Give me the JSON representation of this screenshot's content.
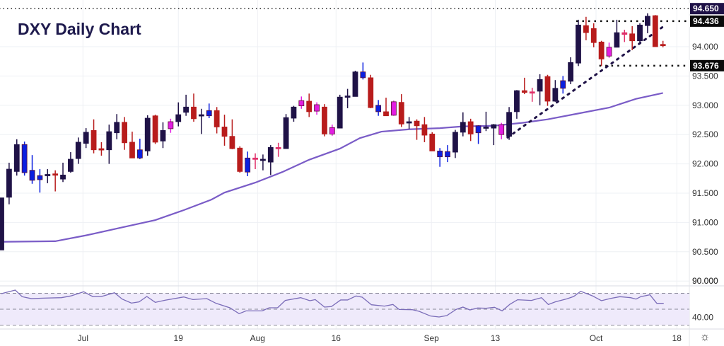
{
  "chart_data": {
    "type": "candlestick",
    "title": "DXY Daily Chart",
    "ylim": [
      89.85,
      94.8
    ],
    "price_ticks": [
      "90.000",
      "90.500",
      "91.000",
      "91.500",
      "92.000",
      "92.500",
      "93.000",
      "93.500",
      "94.000"
    ],
    "rsi_ticks": [
      {
        "value": 90,
        "label": "90.000",
        "panel": "price"
      },
      {
        "value": 40,
        "label": "40.00",
        "panel": "rsi"
      }
    ],
    "x_ticks": [
      {
        "i": 10.6,
        "label": "Jul"
      },
      {
        "i": 23.0,
        "label": "19"
      },
      {
        "i": 33.3,
        "label": "Aug"
      },
      {
        "i": 43.5,
        "label": "16"
      },
      {
        "i": 55.9,
        "label": "Sep"
      },
      {
        "i": 64.2,
        "label": "13"
      },
      {
        "i": 77.3,
        "label": "Oct"
      },
      {
        "i": 87.8,
        "label": "18"
      }
    ],
    "colors": {
      "d": "#1f1247",
      "r": "#b81c1c",
      "b": "#0b1fe0",
      "m": "#e21ee2",
      "p": "#e0306a",
      "ma": "#7a5cc7",
      "rsi": "#7a6cb8",
      "rsi_bg": "#efeafb"
    },
    "candle_fields": [
      "open",
      "high",
      "low",
      "close",
      "color"
    ],
    "candles": [
      [
        90.53,
        91.42,
        90.53,
        91.42,
        "d"
      ],
      [
        91.43,
        92.02,
        91.31,
        91.91,
        "d"
      ],
      [
        91.87,
        92.42,
        91.8,
        92.33,
        "d"
      ],
      [
        92.33,
        92.38,
        91.8,
        91.85,
        "b"
      ],
      [
        91.89,
        92.15,
        91.66,
        91.72,
        "b"
      ],
      [
        91.8,
        91.91,
        91.51,
        91.73,
        "b"
      ],
      [
        91.81,
        91.91,
        91.67,
        91.82,
        "d"
      ],
      [
        91.83,
        91.89,
        91.53,
        91.82,
        "r"
      ],
      [
        91.74,
        92.02,
        91.69,
        91.81,
        "d"
      ],
      [
        91.87,
        92.2,
        91.85,
        92.08,
        "d"
      ],
      [
        92.09,
        92.45,
        92.0,
        92.37,
        "d"
      ],
      [
        92.35,
        92.61,
        92.27,
        92.54,
        "d"
      ],
      [
        92.57,
        92.76,
        92.18,
        92.24,
        "r"
      ],
      [
        92.26,
        92.37,
        92.14,
        92.25,
        "r"
      ],
      [
        92.24,
        92.67,
        92.0,
        92.55,
        "d"
      ],
      [
        92.53,
        92.85,
        92.42,
        92.71,
        "d"
      ],
      [
        92.71,
        92.8,
        92.24,
        92.36,
        "r"
      ],
      [
        92.37,
        92.55,
        92.1,
        92.1,
        "r"
      ],
      [
        92.1,
        92.43,
        92.08,
        92.24,
        "b"
      ],
      [
        92.22,
        92.83,
        92.14,
        92.78,
        "d"
      ],
      [
        92.82,
        92.84,
        92.34,
        92.37,
        "r"
      ],
      [
        92.39,
        92.71,
        92.27,
        92.57,
        "d"
      ],
      [
        92.6,
        92.77,
        92.53,
        92.72,
        "m"
      ],
      [
        92.72,
        93.05,
        92.64,
        92.84,
        "d"
      ],
      [
        92.88,
        93.18,
        92.82,
        92.97,
        "d"
      ],
      [
        92.97,
        93.2,
        92.72,
        92.77,
        "r"
      ],
      [
        92.82,
        92.94,
        92.51,
        92.84,
        "d"
      ],
      [
        92.82,
        93.03,
        92.78,
        92.91,
        "b"
      ],
      [
        92.91,
        92.97,
        92.52,
        92.63,
        "r"
      ],
      [
        92.63,
        92.84,
        92.31,
        92.47,
        "r"
      ],
      [
        92.47,
        92.76,
        92.25,
        92.26,
        "r"
      ],
      [
        92.27,
        92.3,
        91.85,
        91.87,
        "r"
      ],
      [
        91.86,
        92.21,
        91.79,
        92.1,
        "b"
      ],
      [
        92.1,
        92.18,
        91.91,
        92.08,
        "p"
      ],
      [
        92.06,
        92.16,
        91.89,
        92.08,
        "d"
      ],
      [
        92.03,
        92.32,
        91.81,
        92.28,
        "d"
      ],
      [
        92.28,
        92.36,
        92.12,
        92.26,
        "p"
      ],
      [
        92.26,
        92.85,
        92.26,
        92.79,
        "d"
      ],
      [
        92.78,
        92.99,
        92.72,
        92.97,
        "d"
      ],
      [
        92.99,
        93.15,
        92.94,
        93.08,
        "m"
      ],
      [
        93.07,
        93.2,
        92.8,
        92.89,
        "r"
      ],
      [
        92.9,
        93.05,
        92.84,
        93.01,
        "m"
      ],
      [
        92.97,
        93.02,
        92.47,
        92.51,
        "r"
      ],
      [
        92.51,
        92.67,
        92.48,
        92.62,
        "m"
      ],
      [
        92.61,
        93.18,
        92.61,
        93.14,
        "d"
      ],
      [
        93.14,
        93.28,
        92.95,
        93.16,
        "d"
      ],
      [
        93.15,
        93.59,
        93.15,
        93.57,
        "d"
      ],
      [
        93.47,
        93.73,
        93.44,
        93.57,
        "b"
      ],
      [
        93.47,
        93.52,
        92.95,
        92.96,
        "r"
      ],
      [
        92.89,
        93.09,
        92.82,
        93.0,
        "b"
      ],
      [
        92.89,
        93.13,
        92.82,
        92.82,
        "r"
      ],
      [
        92.83,
        93.08,
        92.82,
        93.06,
        "m"
      ],
      [
        93.05,
        93.19,
        92.63,
        92.68,
        "r"
      ],
      [
        92.7,
        92.8,
        92.6,
        92.72,
        "d"
      ],
      [
        92.73,
        92.76,
        92.41,
        92.65,
        "r"
      ],
      [
        92.67,
        92.8,
        92.37,
        92.49,
        "r"
      ],
      [
        92.51,
        92.54,
        92.22,
        92.22,
        "r"
      ],
      [
        92.22,
        92.27,
        91.95,
        92.12,
        "b"
      ],
      [
        92.12,
        92.32,
        92.03,
        92.21,
        "b"
      ],
      [
        92.2,
        92.58,
        92.1,
        92.54,
        "d"
      ],
      [
        92.54,
        92.88,
        92.47,
        92.71,
        "d"
      ],
      [
        92.72,
        92.77,
        92.39,
        92.51,
        "r"
      ],
      [
        92.53,
        92.66,
        92.34,
        92.65,
        "b"
      ],
      [
        92.61,
        92.89,
        92.56,
        92.63,
        "d"
      ],
      [
        92.61,
        92.68,
        92.32,
        92.67,
        "d"
      ],
      [
        92.5,
        92.7,
        92.42,
        92.67,
        "m"
      ],
      [
        92.47,
        92.97,
        92.41,
        92.88,
        "d"
      ],
      [
        92.89,
        93.26,
        92.77,
        93.25,
        "d"
      ],
      [
        93.25,
        93.47,
        93.19,
        93.22,
        "r"
      ],
      [
        93.23,
        93.3,
        93.06,
        93.22,
        "p"
      ],
      [
        93.24,
        93.53,
        93.0,
        93.44,
        "d"
      ],
      [
        93.49,
        93.52,
        92.99,
        93.07,
        "r"
      ],
      [
        93.07,
        93.43,
        93.06,
        93.29,
        "d"
      ],
      [
        93.29,
        93.5,
        93.2,
        93.42,
        "b"
      ],
      [
        93.41,
        93.82,
        93.36,
        93.73,
        "d"
      ],
      [
        93.72,
        94.46,
        93.67,
        94.37,
        "d"
      ],
      [
        94.36,
        94.51,
        94.11,
        94.24,
        "r"
      ],
      [
        94.31,
        94.4,
        93.99,
        94.07,
        "r"
      ],
      [
        94.08,
        94.1,
        93.67,
        93.79,
        "r"
      ],
      [
        93.84,
        94.07,
        93.81,
        93.99,
        "m"
      ],
      [
        93.99,
        94.46,
        93.99,
        94.24,
        "d"
      ],
      [
        94.24,
        94.29,
        94.08,
        94.21,
        "p"
      ],
      [
        94.22,
        94.35,
        93.94,
        94.1,
        "r"
      ],
      [
        94.1,
        94.4,
        94.04,
        94.37,
        "d"
      ],
      [
        94.36,
        94.57,
        94.23,
        94.52,
        "d"
      ],
      [
        94.53,
        94.54,
        94.0,
        94.0,
        "r"
      ],
      [
        94.04,
        94.1,
        93.99,
        94.03,
        "r"
      ]
    ],
    "moving_average": [
      [
        0,
        90.67
      ],
      [
        7,
        90.68
      ],
      [
        11,
        90.78
      ],
      [
        15.5,
        90.91
      ],
      [
        20,
        91.04
      ],
      [
        23.7,
        91.21
      ],
      [
        27.3,
        91.39
      ],
      [
        29,
        91.51
      ],
      [
        33,
        91.68
      ],
      [
        36.5,
        91.86
      ],
      [
        40,
        92.07
      ],
      [
        44,
        92.26
      ],
      [
        46.6,
        92.44
      ],
      [
        49.4,
        92.55
      ],
      [
        53,
        92.59
      ],
      [
        57,
        92.61
      ],
      [
        60,
        92.64
      ],
      [
        64,
        92.65
      ],
      [
        67.7,
        92.7
      ],
      [
        71,
        92.76
      ],
      [
        75,
        92.86
      ],
      [
        79,
        92.96
      ],
      [
        82.5,
        93.11
      ],
      [
        86,
        93.21
      ]
    ],
    "levels": [
      {
        "price": 94.65,
        "label": "94.650",
        "from": 0,
        "bg": "#1f1247"
      },
      {
        "price": 94.436,
        "label": "94.436",
        "from": 75,
        "bg": "#0a0a0a"
      },
      {
        "price": 93.676,
        "label": "93.676",
        "from": 78,
        "bg": "#0a0a0a"
      }
    ],
    "trendline": [
      [
        65.8,
        92.45
      ],
      [
        86,
        94.34
      ]
    ],
    "rsi": {
      "upper": 70,
      "middle": 50,
      "lower": 30,
      "points": [
        [
          0,
          69.6
        ],
        [
          1.8,
          74.0
        ],
        [
          2.7,
          65.7
        ],
        [
          3.9,
          63.3
        ],
        [
          5.4,
          63.9
        ],
        [
          7.8,
          64.5
        ],
        [
          9.0,
          66.6
        ],
        [
          10.7,
          71.9
        ],
        [
          11.9,
          65.7
        ],
        [
          12.9,
          65.7
        ],
        [
          14.7,
          70.7
        ],
        [
          15.7,
          62.7
        ],
        [
          16.9,
          57.7
        ],
        [
          17.9,
          59.2
        ],
        [
          18.9,
          66.0
        ],
        [
          20.0,
          58.6
        ],
        [
          21.3,
          61.3
        ],
        [
          23.7,
          65.4
        ],
        [
          24.9,
          62.1
        ],
        [
          26.7,
          63.3
        ],
        [
          27.9,
          57.4
        ],
        [
          29.7,
          51.8
        ],
        [
          30.9,
          44.4
        ],
        [
          31.8,
          47.9
        ],
        [
          33.9,
          47.9
        ],
        [
          34.8,
          51.8
        ],
        [
          35.9,
          51.8
        ],
        [
          36.9,
          61.0
        ],
        [
          38.9,
          64.5
        ],
        [
          40.1,
          60.7
        ],
        [
          40.8,
          62.1
        ],
        [
          42.0,
          52.7
        ],
        [
          42.9,
          53.3
        ],
        [
          44.1,
          61.6
        ],
        [
          45.0,
          61.6
        ],
        [
          46.1,
          66.6
        ],
        [
          46.9,
          65.1
        ],
        [
          48.1,
          55.6
        ],
        [
          49.8,
          53.9
        ],
        [
          50.9,
          55.9
        ],
        [
          51.7,
          49.7
        ],
        [
          53.4,
          49.4
        ],
        [
          54.3,
          47.3
        ],
        [
          55.8,
          41.4
        ],
        [
          56.9,
          40.2
        ],
        [
          57.9,
          42.0
        ],
        [
          59.1,
          49.7
        ],
        [
          60.0,
          52.7
        ],
        [
          60.9,
          49.1
        ],
        [
          61.9,
          51.5
        ],
        [
          63.0,
          51.2
        ],
        [
          64.1,
          52.4
        ],
        [
          65.1,
          47.9
        ],
        [
          66.1,
          56.2
        ],
        [
          67.1,
          61.9
        ],
        [
          68.9,
          61.0
        ],
        [
          70.2,
          64.5
        ],
        [
          71.1,
          55.9
        ],
        [
          72.0,
          59.2
        ],
        [
          73.5,
          63.0
        ],
        [
          74.4,
          66.0
        ],
        [
          75.3,
          72.5
        ],
        [
          76.8,
          66.9
        ],
        [
          78.0,
          60.7
        ],
        [
          79.2,
          63.6
        ],
        [
          80.4,
          65.7
        ],
        [
          81.8,
          64.5
        ],
        [
          82.5,
          62.7
        ],
        [
          83.1,
          65.7
        ],
        [
          84.3,
          68.1
        ],
        [
          85.2,
          57.4
        ],
        [
          86.1,
          57.4
        ]
      ]
    }
  },
  "ui": {
    "settings_icon": "gear-icon"
  }
}
